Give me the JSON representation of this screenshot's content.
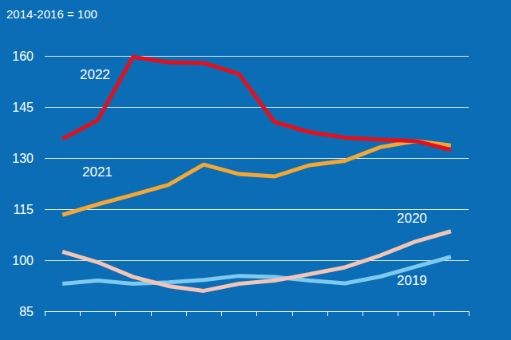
{
  "chart_data": {
    "type": "line",
    "y_label": "2014-2016 = 100",
    "categories": [
      null,
      null,
      null,
      null,
      null,
      null,
      null,
      null,
      null,
      null,
      null,
      null
    ],
    "series": [
      {
        "name": "2019",
        "color": "#7fc9ee",
        "values": [
          93.1,
          94.0,
          93.1,
          93.5,
          94.2,
          95.4,
          95.1,
          94.0,
          93.2,
          95.2,
          98.1,
          101.0
        ]
      },
      {
        "name": "2020",
        "color": "#f4c4b6",
        "values": [
          102.5,
          99.4,
          95.1,
          92.4,
          91.0,
          93.1,
          94.0,
          95.9,
          97.9,
          101.4,
          105.5,
          108.5
        ]
      },
      {
        "name": "2021",
        "color": "#f5a733",
        "values": [
          113.3,
          116.4,
          119.2,
          122.1,
          128.1,
          125.3,
          124.6,
          127.9,
          129.2,
          133.2,
          135.0,
          133.7
        ]
      },
      {
        "name": "2022",
        "color": "#e4101b",
        "values": [
          135.6,
          141.1,
          159.7,
          158.1,
          157.9,
          154.7,
          140.6,
          137.6,
          136.0,
          135.4,
          135.0,
          132.4
        ]
      }
    ],
    "ylim": [
      85,
      160
    ],
    "yticks": [
      85,
      100,
      115,
      130,
      145,
      160
    ],
    "grid": true,
    "tick_labels": "y"
  }
}
